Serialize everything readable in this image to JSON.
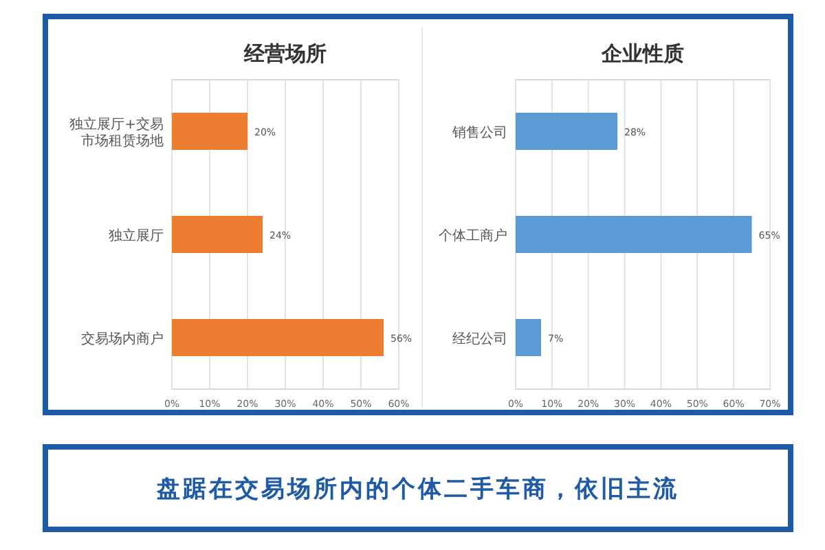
{
  "chart_data": [
    {
      "type": "bar",
      "orientation": "horizontal",
      "title": "经营场所",
      "categories": [
        "独立展厅+交易市场租赁场地",
        "独立展厅",
        "交易场内商户"
      ],
      "values": [
        20,
        24,
        56
      ],
      "value_labels": [
        "20%",
        "24%",
        "56%"
      ],
      "color": "#ed7d31",
      "xlim": [
        0,
        60
      ],
      "xticks": [
        {
          "value": 0,
          "label": "0%"
        },
        {
          "value": 10,
          "label": "10%"
        },
        {
          "value": 20,
          "label": "20%"
        },
        {
          "value": 30,
          "label": "30%"
        },
        {
          "value": 40,
          "label": "40%"
        },
        {
          "value": 50,
          "label": "50%"
        },
        {
          "value": 60,
          "label": "60%"
        }
      ],
      "grid": "x"
    },
    {
      "type": "bar",
      "orientation": "horizontal",
      "title": "企业性质",
      "categories": [
        "销售公司",
        "个体工商户",
        "经纪公司"
      ],
      "values": [
        28,
        65,
        7
      ],
      "value_labels": [
        "28%",
        "65%",
        "7%"
      ],
      "color": "#5b9bd5",
      "xlim": [
        0,
        70
      ],
      "xticks": [
        {
          "value": 0,
          "label": "0%"
        },
        {
          "value": 10,
          "label": "10%"
        },
        {
          "value": 20,
          "label": "20%"
        },
        {
          "value": 30,
          "label": "30%"
        },
        {
          "value": 40,
          "label": "40%"
        },
        {
          "value": 50,
          "label": "50%"
        },
        {
          "value": 60,
          "label": "60%"
        },
        {
          "value": 70,
          "label": "70%"
        }
      ],
      "grid": "x"
    },
    {
      "type": "other",
      "title": "盘踞在交易场所内的个体二手车商，依旧主流"
    }
  ]
}
